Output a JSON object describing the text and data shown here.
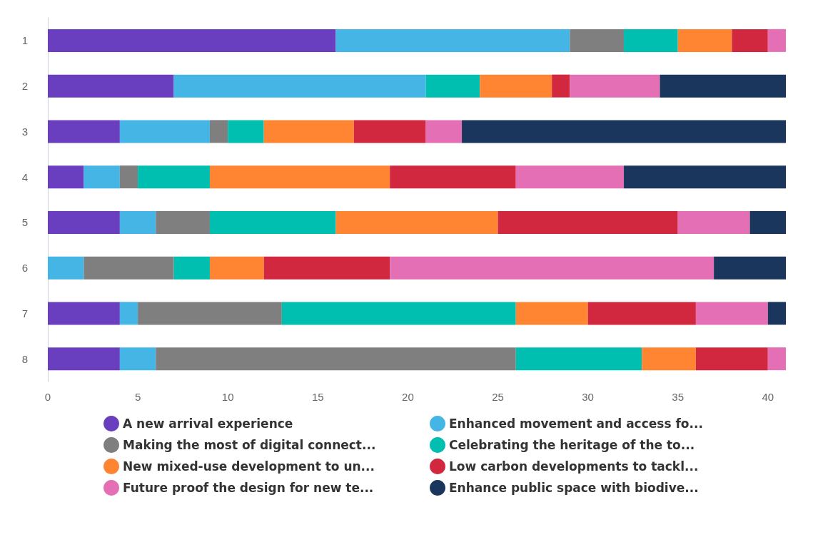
{
  "chart_data": {
    "type": "bar",
    "orientation": "horizontal",
    "stacked": true,
    "categories": [
      "1",
      "2",
      "3",
      "4",
      "5",
      "6",
      "7",
      "8"
    ],
    "xlim": [
      0,
      41
    ],
    "xticks": [
      0,
      5,
      10,
      15,
      20,
      25,
      30,
      35,
      40
    ],
    "grid": false,
    "legend": "bottom",
    "series": [
      {
        "name": "A new arrival experience",
        "color": "#6a3fbf",
        "values": [
          16,
          7,
          4,
          2,
          4,
          0,
          4,
          4
        ]
      },
      {
        "name": "Enhanced movement and access fo...",
        "color": "#44b5e5",
        "values": [
          13,
          14,
          5,
          2,
          2,
          2,
          1,
          2
        ]
      },
      {
        "name": "Making the most of digital connect...",
        "color": "#7f7f7f",
        "values": [
          3,
          0,
          1,
          1,
          3,
          5,
          8,
          20
        ]
      },
      {
        "name": "Celebrating the heritage of the to...",
        "color": "#00bfb0",
        "values": [
          3,
          3,
          2,
          4,
          7,
          2,
          13,
          7
        ]
      },
      {
        "name": "New mixed-use development to un...",
        "color": "#ff8532",
        "values": [
          3,
          4,
          5,
          10,
          9,
          3,
          4,
          3
        ]
      },
      {
        "name": "Low carbon developments to tackl...",
        "color": "#d1273f",
        "values": [
          2,
          1,
          4,
          7,
          10,
          7,
          6,
          4
        ]
      },
      {
        "name": "Future proof the design for new te...",
        "color": "#e46fb4",
        "values": [
          1,
          5,
          2,
          6,
          4,
          18,
          4,
          1
        ]
      },
      {
        "name": "Enhance public space with biodive...",
        "color": "#1b365d",
        "values": [
          0,
          7,
          18,
          9,
          2,
          4,
          1,
          0
        ]
      }
    ]
  }
}
